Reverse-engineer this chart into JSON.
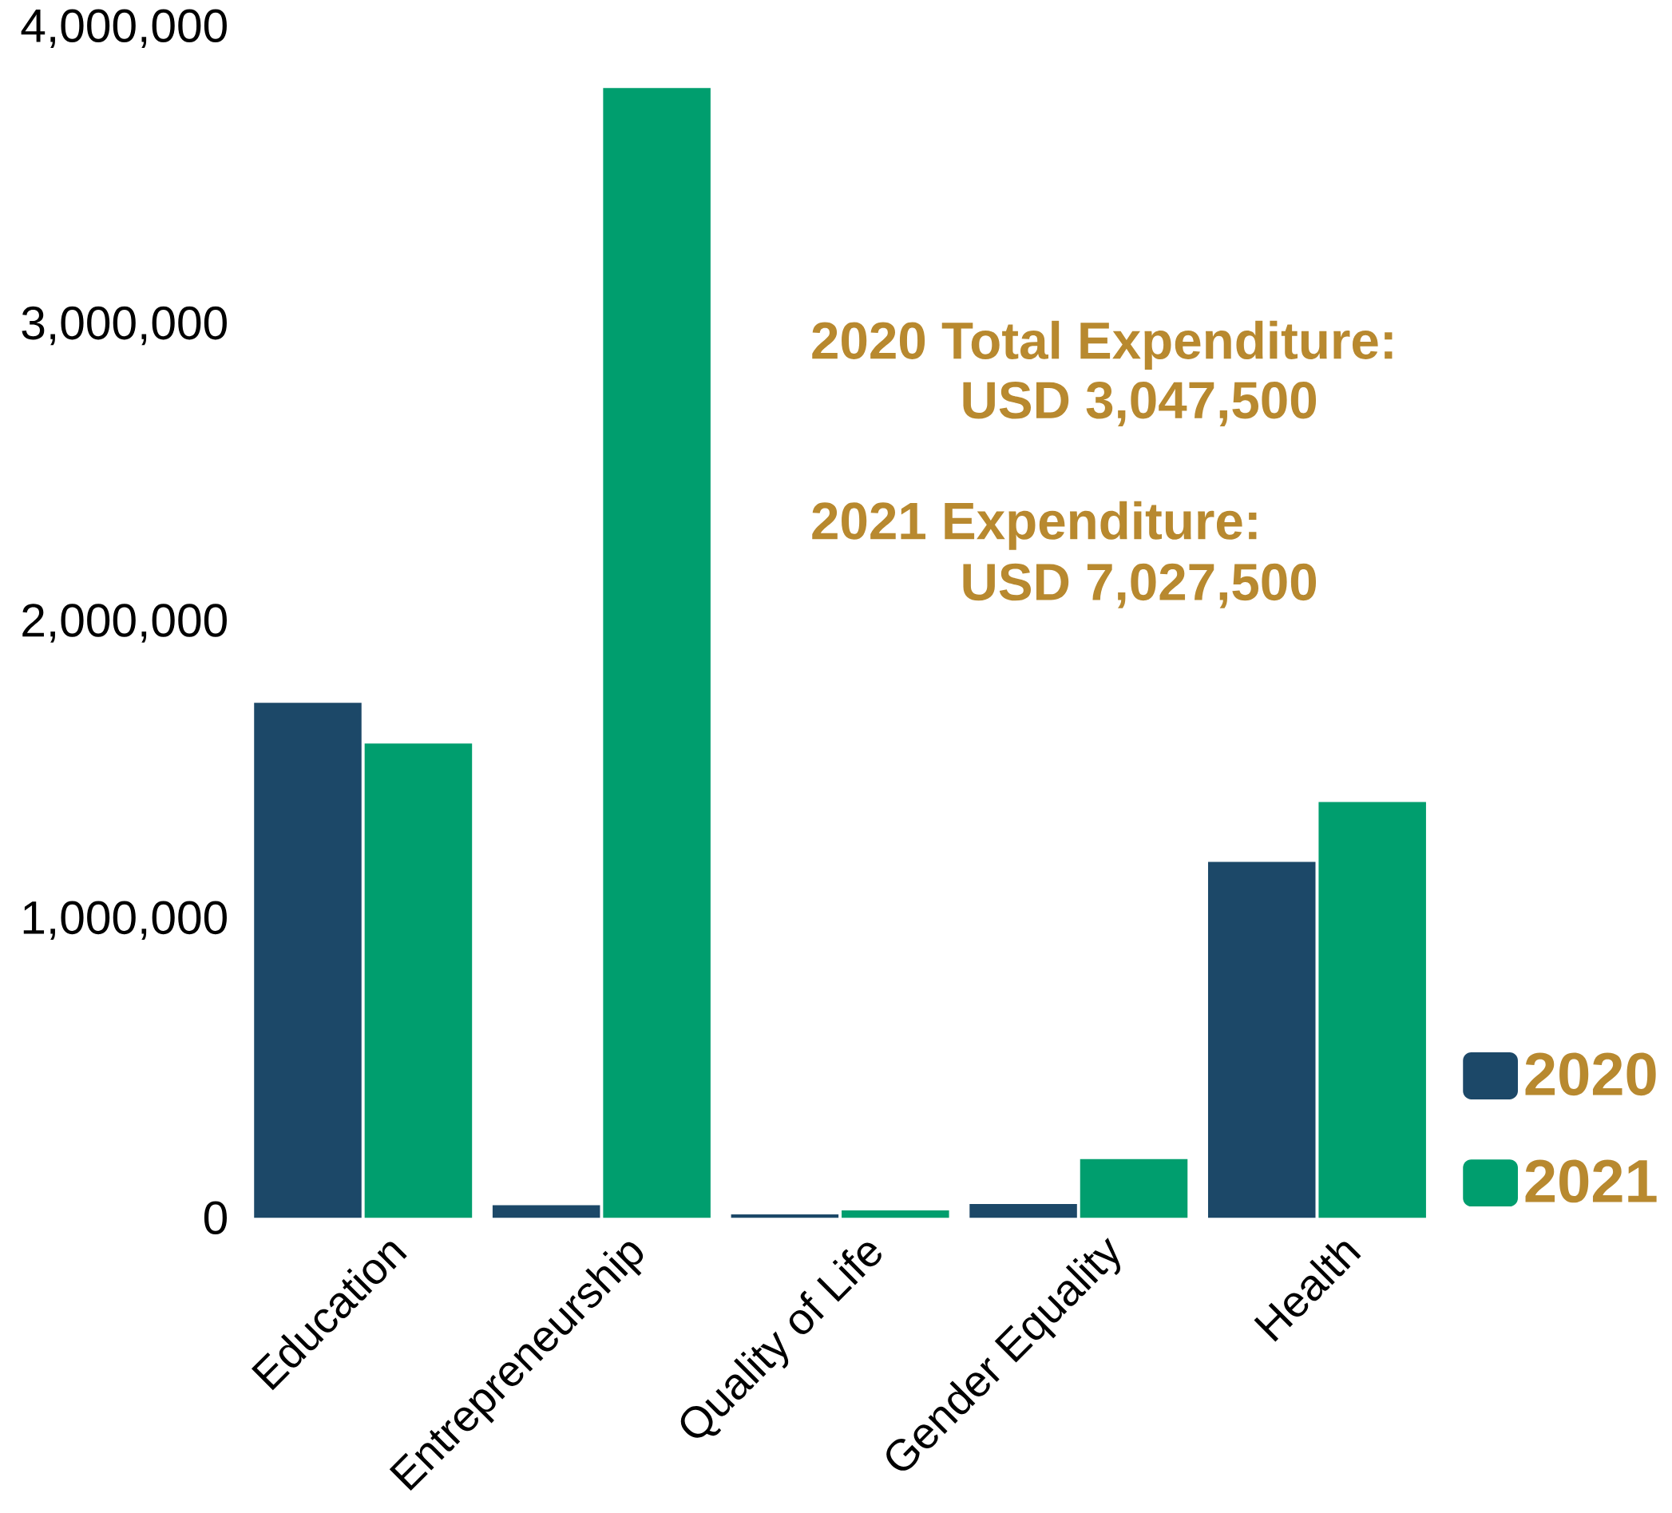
{
  "chart_data": {
    "type": "bar",
    "categories": [
      "Education",
      "Entrepreneurship",
      "Quality of Life",
      "Gender Equality",
      "Health"
    ],
    "series": [
      {
        "name": "2020",
        "color": "#1c4868",
        "values": [
          1732000,
          42000,
          11000,
          46000,
          1197000
        ]
      },
      {
        "name": "2021",
        "color": "#009e6e",
        "values": [
          1595000,
          3800000,
          25000,
          197000,
          1398000
        ]
      }
    ],
    "ylim": [
      0,
      4000000
    ],
    "yticks": [
      {
        "value": 0,
        "label": "0"
      },
      {
        "value": 1000000,
        "label": "1,000,000"
      },
      {
        "value": 2000000,
        "label": "2,000,000"
      },
      {
        "value": 3000000,
        "label": "3,000,000"
      },
      {
        "value": 4000000,
        "label": "4,000,000"
      }
    ],
    "annotations": [
      "2020 Total Expenditure:",
      "USD 3,047,500",
      "2021 Expenditure:",
      "USD  7,027,500"
    ],
    "legend": "bottom right"
  }
}
